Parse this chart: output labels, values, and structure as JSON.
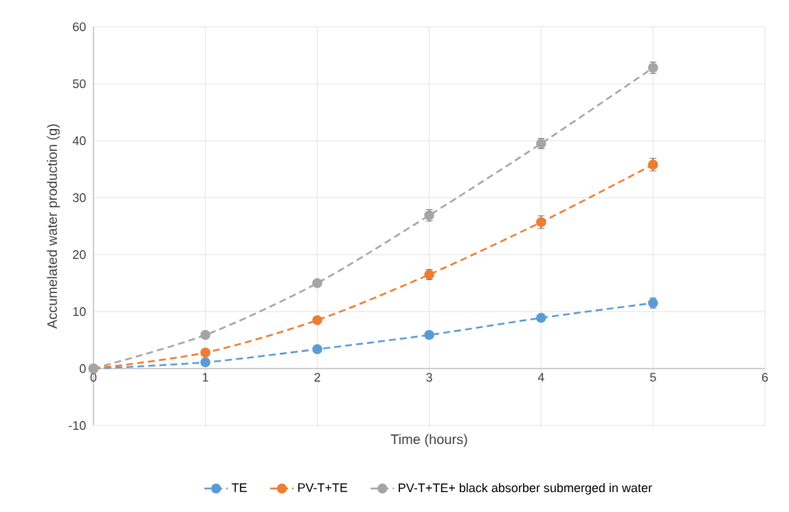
{
  "chart_data": {
    "type": "line",
    "xlabel": "Time (hours)",
    "ylabel": "Accumelated water production (g)",
    "x": [
      0,
      1,
      2,
      3,
      4,
      5
    ],
    "series": [
      {
        "name": "TE",
        "color": "#5b9bd5",
        "values": [
          0,
          1.1,
          3.4,
          5.9,
          8.9,
          11.5
        ],
        "errors": [
          null,
          null,
          null,
          null,
          null,
          0.9
        ]
      },
      {
        "name": "PV-T+TE",
        "color": "#ed7d31",
        "values": [
          0,
          2.8,
          8.5,
          16.5,
          25.7,
          35.8
        ],
        "errors": [
          null,
          null,
          null,
          0.9,
          1.1,
          1.1
        ]
      },
      {
        "name": "PV-T+TE+ black absorber submerged in water",
        "color": "#a5a5a5",
        "values": [
          0,
          5.9,
          15,
          26.9,
          39.5,
          52.8
        ],
        "errors": [
          null,
          null,
          null,
          1.0,
          0.9,
          1.0
        ]
      }
    ],
    "xlim": [
      0,
      6
    ],
    "ylim": [
      -10,
      60
    ],
    "xticks": [
      0,
      1,
      2,
      3,
      4,
      5,
      6
    ],
    "yticks": [
      -10,
      0,
      10,
      20,
      30,
      40,
      50,
      60
    ],
    "grid": true,
    "legend": "bottom",
    "marker": "circle",
    "line_style": "dashed"
  }
}
